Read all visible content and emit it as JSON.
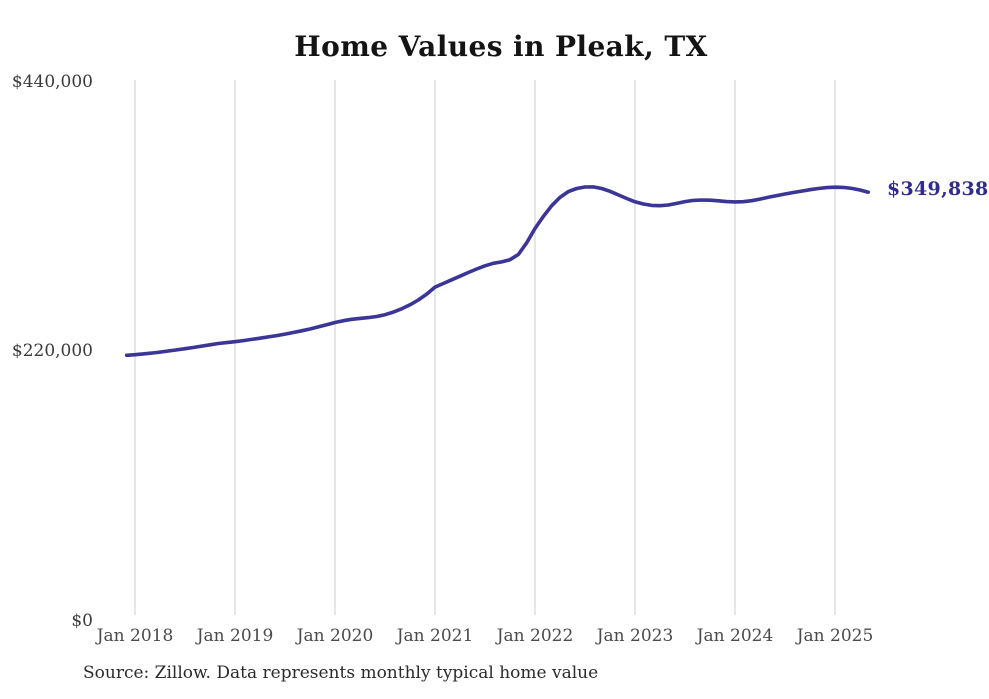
{
  "title": "Home Values in Pleak, TX",
  "source_note": "Source: Zillow. Data represents monthly typical home value",
  "end_label": "$349,838",
  "colors": {
    "line": "#3a3596",
    "end_label": "#2f2b91",
    "gridline": "#cccccc",
    "title_text": "#141414",
    "y_tick_text": "#3a3a3a",
    "x_tick_text": "#4a4a4a",
    "source_text": "#2b2b2b",
    "background": "#ffffff"
  },
  "y_axis": {
    "tick_labels": [
      "$440,000",
      "$220,000",
      "$0"
    ]
  },
  "x_axis": {
    "tick_labels": [
      "Jan 2018",
      "Jan 2019",
      "Jan 2020",
      "Jan 2021",
      "Jan 2022",
      "Jan 2023",
      "Jan 2024",
      "Jan 2025"
    ]
  },
  "chart_data": {
    "type": "line",
    "title": "Home Values in Pleak, TX",
    "xlabel": "",
    "ylabel": "",
    "ylim": [
      0,
      440000
    ],
    "y_tick_values": [
      0,
      220000,
      440000
    ],
    "y_tick_labels": [
      "$0",
      "$220,000",
      "$440,000"
    ],
    "x_tick_labels": [
      "Jan 2018",
      "Jan 2019",
      "Jan 2020",
      "Jan 2021",
      "Jan 2022",
      "Jan 2023",
      "Jan 2024",
      "Jan 2025"
    ],
    "grid": "vertical-only",
    "legend": "none",
    "last_value": 349838,
    "last_value_label": "$349,838",
    "series": [
      {
        "name": "Monthly typical home value",
        "color": "#3a3596",
        "x": [
          "2017-12",
          "2018-01",
          "2018-02",
          "2018-03",
          "2018-04",
          "2018-05",
          "2018-06",
          "2018-07",
          "2018-08",
          "2018-09",
          "2018-10",
          "2018-11",
          "2018-12",
          "2019-01",
          "2019-02",
          "2019-03",
          "2019-04",
          "2019-05",
          "2019-06",
          "2019-07",
          "2019-08",
          "2019-09",
          "2019-10",
          "2019-11",
          "2019-12",
          "2020-01",
          "2020-02",
          "2020-03",
          "2020-04",
          "2020-05",
          "2020-06",
          "2020-07",
          "2020-08",
          "2020-09",
          "2020-10",
          "2020-11",
          "2020-12",
          "2021-01",
          "2021-02",
          "2021-03",
          "2021-04",
          "2021-05",
          "2021-06",
          "2021-07",
          "2021-08",
          "2021-09",
          "2021-10",
          "2021-11",
          "2021-12",
          "2022-01",
          "2022-02",
          "2022-03",
          "2022-04",
          "2022-05",
          "2022-06",
          "2022-07",
          "2022-08",
          "2022-09",
          "2022-10",
          "2022-11",
          "2022-12",
          "2023-01",
          "2023-02",
          "2023-03",
          "2023-04",
          "2023-05",
          "2023-06",
          "2023-07",
          "2023-08",
          "2023-09",
          "2023-10",
          "2023-11",
          "2023-12",
          "2024-01",
          "2024-02",
          "2024-03",
          "2024-04",
          "2024-05",
          "2024-06",
          "2024-07",
          "2024-08",
          "2024-09",
          "2024-10",
          "2024-11",
          "2024-12",
          "2025-01",
          "2025-02",
          "2025-03",
          "2025-04",
          "2025-05"
        ],
        "values": [
          216500,
          217000,
          217600,
          218300,
          219100,
          220000,
          220900,
          221900,
          222900,
          224000,
          225100,
          226100,
          226900,
          227600,
          228500,
          229500,
          230500,
          231500,
          232600,
          233800,
          235100,
          236500,
          238000,
          239700,
          241500,
          243300,
          244800,
          245900,
          246700,
          247300,
          248200,
          249700,
          251800,
          254500,
          257800,
          261700,
          266500,
          272300,
          275200,
          278200,
          281200,
          284200,
          287100,
          289700,
          291700,
          292900,
          294700,
          298900,
          308500,
          320200,
          330000,
          338800,
          345600,
          350400,
          352900,
          354100,
          354200,
          352900,
          350600,
          347700,
          344700,
          342000,
          340200,
          339100,
          338800,
          339400,
          340700,
          342200,
          343200,
          343500,
          343300,
          342800,
          342200,
          341900,
          342100,
          342900,
          344200,
          345700,
          347100,
          348400,
          349600,
          350800,
          351900,
          352900,
          353600,
          354000,
          353800,
          353000,
          351700,
          349838
        ]
      }
    ]
  }
}
